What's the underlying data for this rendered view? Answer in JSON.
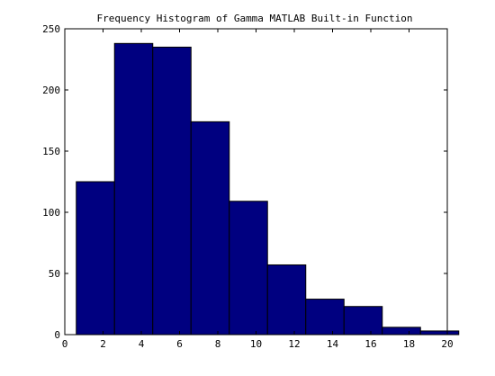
{
  "chart_data": {
    "type": "bar",
    "title": "Frequency Histogram of Gamma MATLAB Built-in Function",
    "xlabel": "",
    "ylabel": "",
    "bin_edges": [
      0.6,
      2.6,
      4.6,
      6.6,
      8.6,
      10.6,
      12.6,
      14.6,
      16.6,
      18.6,
      20.6
    ],
    "values": [
      125,
      238,
      235,
      174,
      109,
      57,
      29,
      23,
      6,
      3
    ],
    "xlim": [
      0,
      20
    ],
    "ylim": [
      0,
      250
    ],
    "xticks": [
      "0",
      "2",
      "4",
      "6",
      "8",
      "10",
      "12",
      "14",
      "16",
      "18",
      "20"
    ],
    "yticks": [
      "0",
      "50",
      "100",
      "150",
      "200",
      "250"
    ],
    "grid": false,
    "colors": {
      "bar_fill": "#000080",
      "bar_edge": "#000000",
      "axes": "#000000",
      "background": "#ffffff"
    }
  }
}
